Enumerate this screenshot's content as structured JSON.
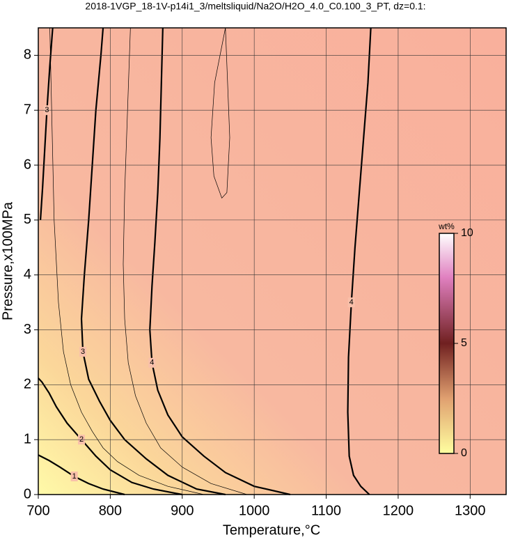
{
  "chart_data": {
    "type": "contour",
    "title": "2018-1VGP_18-1V-p14i1_3/meltsliquid/Na2O/H2O_4.0_C0.100_3_PT, dz=0.1:",
    "x_label": "Temperature,°C",
    "y_label": "Pressure,x100MPa",
    "xlim": [
      700,
      1350
    ],
    "ylim": [
      0,
      8.5
    ],
    "xticks": [
      700,
      800,
      900,
      1000,
      1100,
      1200,
      1300
    ],
    "yticks": [
      0,
      1,
      2,
      3,
      4,
      5,
      6,
      7,
      8
    ],
    "grid": true,
    "contours": [
      {
        "level": 1,
        "x": [
          820,
          790,
          770,
          750,
          730,
          715,
          700
        ],
        "y": [
          0,
          0.1,
          0.2,
          0.33,
          0.5,
          0.62,
          0.72
        ]
      },
      {
        "level": 2,
        "x": [
          900,
          860,
          830,
          800,
          780,
          760,
          740,
          725,
          715,
          705,
          700
        ],
        "y": [
          0,
          0.1,
          0.22,
          0.45,
          0.7,
          1.0,
          1.3,
          1.6,
          1.85,
          2.05,
          2.12
        ]
      },
      {
        "level": 3,
        "x": [
          960,
          920,
          880,
          850,
          820,
          800,
          785,
          770,
          762,
          760,
          764,
          770,
          775,
          780,
          787,
          790
        ],
        "y": [
          0,
          0.1,
          0.35,
          0.65,
          1.0,
          1.35,
          1.7,
          2.1,
          2.6,
          3.2,
          4.0,
          5.0,
          6.0,
          7.0,
          8.0,
          8.5
        ]
      },
      {
        "level": 3,
        "x": [
          703,
          706,
          709,
          712,
          716,
          720
        ],
        "y": [
          5.0,
          5.6,
          6.3,
          7.0,
          7.8,
          8.5
        ]
      },
      {
        "level": 4,
        "x": [
          1050,
          1000,
          960,
          930,
          900,
          880,
          866,
          858,
          855,
          858,
          862,
          866,
          869,
          871,
          873
        ],
        "y": [
          0,
          0.15,
          0.4,
          0.7,
          1.05,
          1.45,
          1.9,
          2.4,
          3.0,
          3.8,
          4.6,
          5.5,
          6.5,
          7.5,
          8.5
        ]
      },
      {
        "level": 4,
        "x": [
          1160,
          1148,
          1138,
          1132,
          1130,
          1131,
          1135,
          1140,
          1146,
          1152,
          1158,
          1162
        ],
        "y": [
          0,
          0.15,
          0.35,
          0.7,
          1.5,
          2.5,
          3.5,
          4.5,
          5.5,
          6.5,
          7.5,
          8.5
        ]
      },
      {
        "level": 3.5,
        "x": [
          990,
          940,
          900,
          870,
          850,
          835,
          825,
          820,
          818,
          820,
          824,
          828
        ],
        "y": [
          0,
          0.2,
          0.5,
          0.85,
          1.3,
          1.8,
          2.4,
          3.2,
          4.2,
          5.5,
          7.0,
          8.5
        ]
      },
      {
        "level": 4.2,
        "x": [
          960,
          945,
          940,
          944,
          955,
          962,
          966,
          963,
          960
        ],
        "y": [
          8.5,
          7.5,
          6.5,
          5.8,
          5.4,
          5.5,
          6.5,
          7.5,
          8.5
        ]
      },
      {
        "level": 2.5,
        "x": [
          930,
          880,
          840,
          810,
          790,
          775,
          760,
          745,
          735,
          728,
          722,
          716
        ],
        "y": [
          0,
          0.15,
          0.35,
          0.6,
          0.85,
          1.15,
          1.5,
          2.0,
          2.6,
          3.5,
          5.0,
          8.5
        ]
      }
    ],
    "colorbar": {
      "label": "wt%",
      "lim": [
        0,
        10
      ],
      "ticks": [
        0,
        5,
        10
      ]
    }
  }
}
